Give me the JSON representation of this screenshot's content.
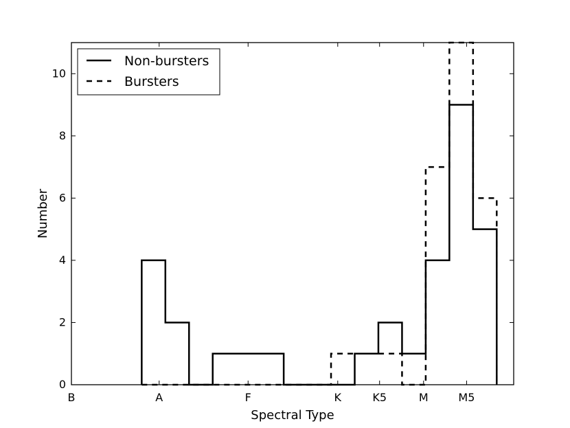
{
  "chart_data": {
    "type": "histogram-step",
    "xlabel": "Spectral Type",
    "ylabel": "Number",
    "xlim": [
      0,
      18.5
    ],
    "ylim": [
      0,
      11
    ],
    "x_ticks": [
      {
        "value": 0,
        "label": "B"
      },
      {
        "value": 3.67,
        "label": "A"
      },
      {
        "value": 7.39,
        "label": "F"
      },
      {
        "value": 11.14,
        "label": "K"
      },
      {
        "value": 12.89,
        "label": "K5"
      },
      {
        "value": 14.73,
        "label": "M"
      },
      {
        "value": 16.53,
        "label": "M5"
      }
    ],
    "y_ticks": [
      0,
      2,
      4,
      6,
      8,
      10
    ],
    "bin_edges": [
      2.94,
      3.93,
      4.92,
      5.91,
      6.9,
      7.89,
      8.88,
      9.87,
      10.86,
      11.85,
      12.84,
      13.83,
      14.82,
      15.81,
      16.8,
      17.79
    ],
    "series": [
      {
        "name": "Non-bursters",
        "style": "solid",
        "values": [
          4,
          2,
          0,
          1,
          1,
          1,
          0,
          0,
          0,
          1,
          2,
          1,
          4,
          9,
          5
        ]
      },
      {
        "name": "Bursters",
        "style": "dashed",
        "values": [
          0,
          0,
          0,
          0,
          0,
          0,
          0,
          0,
          1,
          1,
          1,
          0,
          7,
          11,
          6
        ]
      }
    ],
    "legend_position": "top-left",
    "grid": false
  }
}
